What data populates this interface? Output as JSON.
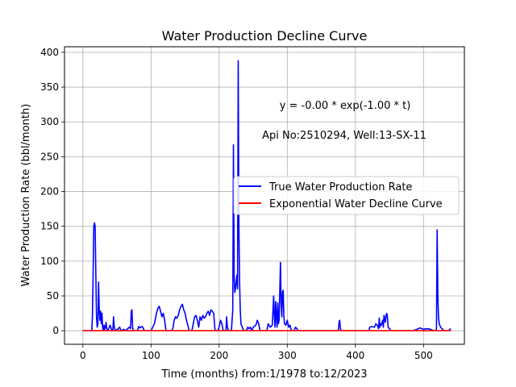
{
  "chart_data": {
    "type": "line",
    "title": "Water Production Decline Curve",
    "xlabel": "Time (months) from:1/1978 to:12/2023",
    "ylabel": "Water Production Rate (bbl/month)",
    "xlim": [
      -27,
      560
    ],
    "ylim": [
      -19.5,
      408
    ],
    "xticks": [
      0,
      100,
      200,
      300,
      400,
      500
    ],
    "yticks": [
      0,
      50,
      100,
      150,
      200,
      250,
      300,
      350,
      400
    ],
    "grid": true,
    "legend_position": "center-right",
    "annotations": [
      {
        "text": "y = -0.00 * exp(-1.00 * t)",
        "x": 370,
        "y": 318
      },
      {
        "text": "Api No:2510294, Well:13-SX-11",
        "x": 380,
        "y": 276
      }
    ],
    "series": [
      {
        "name": "True Water Production Rate",
        "color": "#0000ff",
        "points": [
          [
            0,
            0
          ],
          [
            10,
            0
          ],
          [
            13,
            0
          ],
          [
            14,
            20
          ],
          [
            15,
            80
          ],
          [
            16,
            150
          ],
          [
            17,
            155
          ],
          [
            18,
            150
          ],
          [
            19,
            80
          ],
          [
            20,
            20
          ],
          [
            21,
            5
          ],
          [
            22,
            10
          ],
          [
            23,
            70
          ],
          [
            24,
            30
          ],
          [
            25,
            15
          ],
          [
            26,
            28
          ],
          [
            27,
            10
          ],
          [
            28,
            25
          ],
          [
            29,
            5
          ],
          [
            30,
            0
          ],
          [
            31,
            8
          ],
          [
            32,
            2
          ],
          [
            33,
            5
          ],
          [
            34,
            12
          ],
          [
            35,
            3
          ],
          [
            36,
            0
          ],
          [
            38,
            3
          ],
          [
            40,
            8
          ],
          [
            42,
            2
          ],
          [
            44,
            0
          ],
          [
            45,
            20
          ],
          [
            46,
            5
          ],
          [
            48,
            0
          ],
          [
            52,
            3
          ],
          [
            54,
            5
          ],
          [
            56,
            0
          ],
          [
            60,
            2
          ],
          [
            62,
            0
          ],
          [
            66,
            3
          ],
          [
            68,
            5
          ],
          [
            70,
            3
          ],
          [
            71,
            28
          ],
          [
            72,
            30
          ],
          [
            73,
            5
          ],
          [
            74,
            0
          ],
          [
            80,
            0
          ],
          [
            82,
            6
          ],
          [
            84,
            4
          ],
          [
            86,
            6
          ],
          [
            88,
            5
          ],
          [
            90,
            0
          ],
          [
            100,
            0
          ],
          [
            105,
            10
          ],
          [
            108,
            25
          ],
          [
            110,
            32
          ],
          [
            112,
            35
          ],
          [
            114,
            28
          ],
          [
            116,
            20
          ],
          [
            118,
            25
          ],
          [
            120,
            15
          ],
          [
            122,
            0
          ],
          [
            130,
            0
          ],
          [
            132,
            3
          ],
          [
            134,
            15
          ],
          [
            136,
            20
          ],
          [
            138,
            18
          ],
          [
            140,
            22
          ],
          [
            142,
            30
          ],
          [
            144,
            35
          ],
          [
            146,
            38
          ],
          [
            148,
            30
          ],
          [
            150,
            25
          ],
          [
            152,
            15
          ],
          [
            154,
            8
          ],
          [
            156,
            0
          ],
          [
            160,
            0
          ],
          [
            162,
            10
          ],
          [
            164,
            20
          ],
          [
            166,
            22
          ],
          [
            168,
            15
          ],
          [
            170,
            5
          ],
          [
            172,
            20
          ],
          [
            174,
            15
          ],
          [
            176,
            22
          ],
          [
            178,
            18
          ],
          [
            180,
            20
          ],
          [
            182,
            25
          ],
          [
            184,
            28
          ],
          [
            186,
            22
          ],
          [
            188,
            30
          ],
          [
            190,
            28
          ],
          [
            192,
            25
          ],
          [
            194,
            0
          ],
          [
            198,
            0
          ],
          [
            200,
            5
          ],
          [
            202,
            15
          ],
          [
            204,
            10
          ],
          [
            206,
            0
          ],
          [
            210,
            0
          ],
          [
            211,
            20
          ],
          [
            212,
            5
          ],
          [
            214,
            0
          ],
          [
            218,
            0
          ],
          [
            220,
            30
          ],
          [
            221,
            267
          ],
          [
            222,
            80
          ],
          [
            223,
            55
          ],
          [
            224,
            60
          ],
          [
            225,
            70
          ],
          [
            226,
            80
          ],
          [
            227,
            60
          ],
          [
            228,
            388
          ],
          [
            229,
            150
          ],
          [
            230,
            70
          ],
          [
            231,
            30
          ],
          [
            232,
            10
          ],
          [
            234,
            5
          ],
          [
            236,
            0
          ],
          [
            240,
            0
          ],
          [
            242,
            5
          ],
          [
            244,
            3
          ],
          [
            246,
            5
          ],
          [
            248,
            0
          ],
          [
            250,
            5
          ],
          [
            254,
            8
          ],
          [
            256,
            15
          ],
          [
            258,
            10
          ],
          [
            260,
            0
          ],
          [
            270,
            0
          ],
          [
            272,
            10
          ],
          [
            275,
            5
          ],
          [
            278,
            8
          ],
          [
            280,
            50
          ],
          [
            281,
            20
          ],
          [
            282,
            5
          ],
          [
            283,
            42
          ],
          [
            284,
            20
          ],
          [
            285,
            5
          ],
          [
            286,
            40
          ],
          [
            287,
            10
          ],
          [
            288,
            15
          ],
          [
            290,
            98
          ],
          [
            291,
            40
          ],
          [
            292,
            20
          ],
          [
            293,
            55
          ],
          [
            294,
            58
          ],
          [
            295,
            20
          ],
          [
            296,
            10
          ],
          [
            298,
            8
          ],
          [
            300,
            15
          ],
          [
            302,
            5
          ],
          [
            304,
            8
          ],
          [
            306,
            0
          ],
          [
            310,
            0
          ],
          [
            312,
            5
          ],
          [
            314,
            3
          ],
          [
            316,
            0
          ],
          [
            375,
            0
          ],
          [
            376,
            12
          ],
          [
            377,
            15
          ],
          [
            378,
            3
          ],
          [
            379,
            0
          ],
          [
            420,
            0
          ],
          [
            421,
            5
          ],
          [
            424,
            6
          ],
          [
            428,
            5
          ],
          [
            430,
            10
          ],
          [
            432,
            8
          ],
          [
            434,
            3
          ],
          [
            435,
            18
          ],
          [
            436,
            5
          ],
          [
            437,
            10
          ],
          [
            438,
            8
          ],
          [
            440,
            15
          ],
          [
            441,
            5
          ],
          [
            442,
            22
          ],
          [
            444,
            12
          ],
          [
            445,
            22
          ],
          [
            446,
            25
          ],
          [
            447,
            20
          ],
          [
            448,
            5
          ],
          [
            450,
            3
          ],
          [
            452,
            0
          ],
          [
            480,
            0
          ],
          [
            485,
            0
          ],
          [
            490,
            2
          ],
          [
            495,
            4
          ],
          [
            500,
            2
          ],
          [
            505,
            3
          ],
          [
            510,
            2
          ],
          [
            515,
            0
          ],
          [
            518,
            0
          ],
          [
            519,
            3
          ],
          [
            520,
            145
          ],
          [
            521,
            50
          ],
          [
            522,
            20
          ],
          [
            523,
            10
          ],
          [
            525,
            5
          ],
          [
            530,
            0
          ],
          [
            537,
            0
          ],
          [
            540,
            3
          ]
        ]
      },
      {
        "name": "Exponential Water Decline Curve",
        "color": "#ff0000",
        "points": [
          [
            0,
            0
          ],
          [
            540,
            0
          ]
        ]
      }
    ]
  }
}
